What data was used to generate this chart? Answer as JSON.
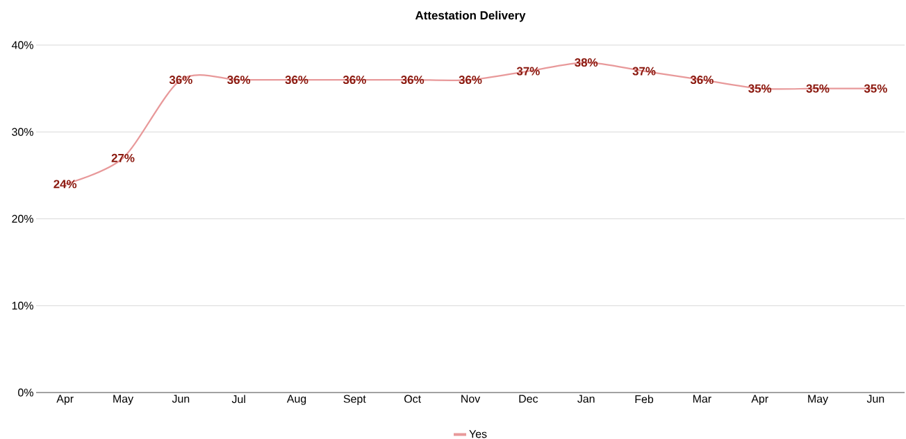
{
  "chart_data": {
    "type": "line",
    "title": "Attestation Delivery",
    "categories": [
      "Apr",
      "May",
      "Jun",
      "Jul",
      "Aug",
      "Sept",
      "Oct",
      "Nov",
      "Dec",
      "Jan",
      "Feb",
      "Mar",
      "Apr",
      "May",
      "Jun"
    ],
    "series": [
      {
        "name": "Yes",
        "color": "#e8999a",
        "values": [
          24,
          27,
          36,
          36,
          36,
          36,
          36,
          36,
          37,
          38,
          37,
          36,
          35,
          35,
          35
        ],
        "value_labels": [
          "24%",
          "27%",
          "36%",
          "36%",
          "36%",
          "36%",
          "36%",
          "36%",
          "37%",
          "38%",
          "37%",
          "36%",
          "35%",
          "35%",
          "35%"
        ]
      }
    ],
    "ylim": [
      0,
      40
    ],
    "yticks": [
      {
        "value": 0,
        "label": "0%"
      },
      {
        "value": 10,
        "label": "10%"
      },
      {
        "value": 20,
        "label": "20%"
      },
      {
        "value": 30,
        "label": "30%"
      },
      {
        "value": 40,
        "label": "40%"
      }
    ],
    "grid": "y",
    "legend": "bottom",
    "marker": "none",
    "line_style": "solid"
  }
}
